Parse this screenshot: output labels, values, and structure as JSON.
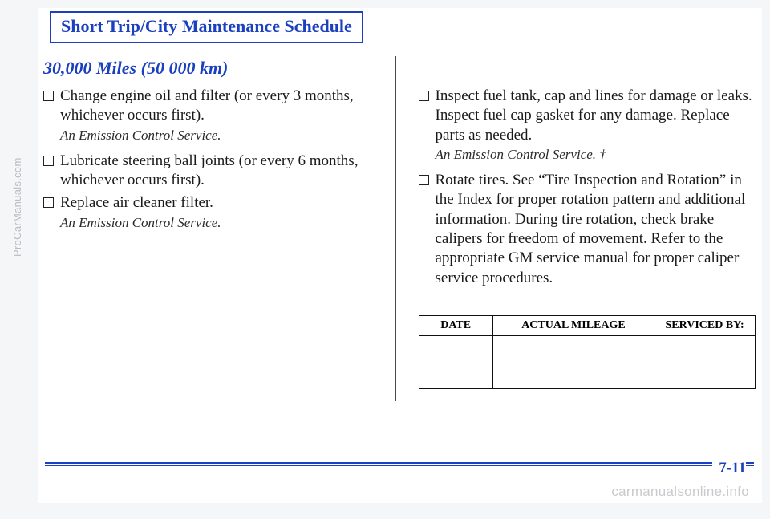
{
  "side_label": "ProCarManuals.com",
  "title": "Short Trip/City Maintenance Schedule",
  "subhead": "30,000 Miles (50 000 km)",
  "left_items": [
    {
      "text": "Change engine oil and filter (or every 3 months, whichever occurs first).",
      "note": "An Emission Control Service."
    },
    {
      "text": "Lubricate steering ball joints (or every 6 months, whichever occurs first).",
      "note": ""
    },
    {
      "text": "Replace air cleaner filter.",
      "note": "An Emission Control Service."
    }
  ],
  "right_items": [
    {
      "text": "Inspect fuel tank, cap and lines for damage or leaks. Inspect fuel cap gasket for any damage. Replace parts as needed.",
      "note": "An Emission Control Service. †"
    },
    {
      "text": "Rotate tires. See “Tire Inspection and Rotation” in the Index for proper rotation pattern and additional information. During tire rotation, check brake calipers for freedom of movement. Refer to the appropriate GM service manual for proper caliper service procedures.",
      "note": ""
    }
  ],
  "table_headers": {
    "date": "DATE",
    "mileage": "ACTUAL MILEAGE",
    "serviced": "SERVICED BY:"
  },
  "page_number": "7-11",
  "watermark": "carmanualsonline.info",
  "colors": {
    "blue": "#1a3fbf",
    "text": "#1a1a1a",
    "page_bg": "#ffffff",
    "outer_bg": "#f5f6f8",
    "faded": "#c8cacd"
  },
  "fonts": {
    "body_family": "Times New Roman",
    "title_size_pt": 22,
    "body_size_pt": 19,
    "note_size_pt": 17,
    "th_size_pt": 14
  }
}
